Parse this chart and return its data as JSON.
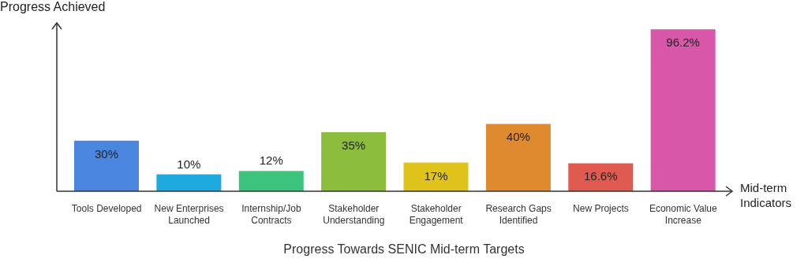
{
  "chart_data": {
    "type": "bar",
    "xlabel": "Mid-term Indicators",
    "ylabel": "Progress Achieved",
    "annotations": [
      "Progress Towards SENIC Mid-term Targets"
    ],
    "categories": [
      "Tools Developed",
      "New Enterprises Launched",
      "Internship/Job Contracts",
      "Stakeholder Understanding",
      "Stakeholder Engagement",
      "Research Gaps Identified",
      "New Projects",
      "Economic Value Increase"
    ],
    "values": [
      30,
      10,
      12,
      35,
      17,
      40,
      16.6,
      96.2
    ],
    "colors": [
      "#4a86e0",
      "#1eaadf",
      "#3cc47c",
      "#8cbc3c",
      "#e0c41c",
      "#e08a30",
      "#e05a50",
      "#d957a8"
    ],
    "value_labels": [
      "30%",
      "10%",
      "12%",
      "35%",
      "17%",
      "40%",
      "16.6%",
      "96.2%"
    ],
    "ylim": [
      0,
      100
    ],
    "tick_labels": "x"
  }
}
